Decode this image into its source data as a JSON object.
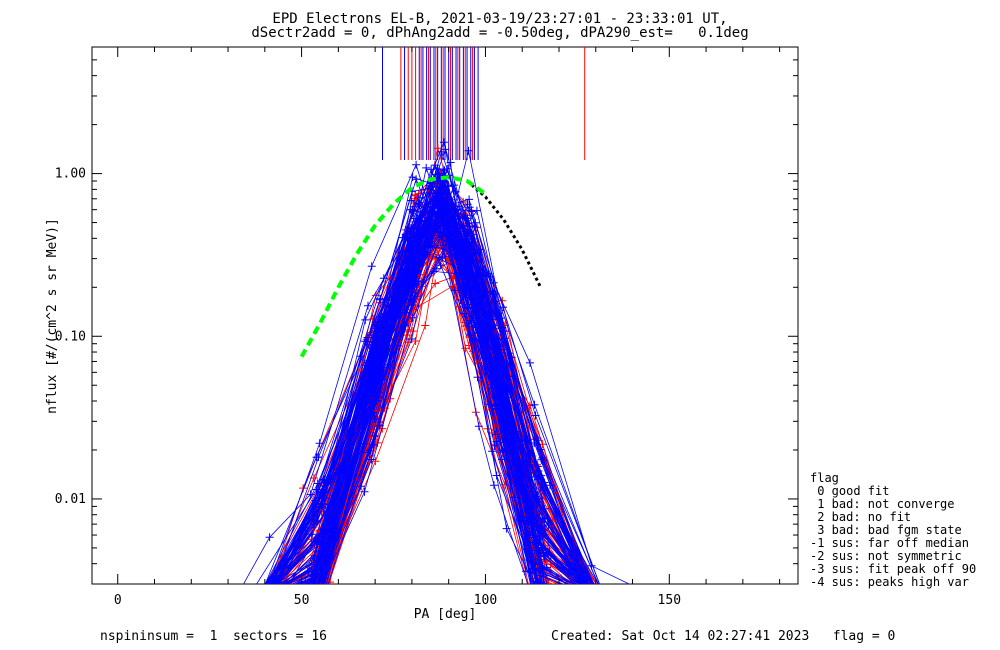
{
  "chart_data": {
    "type": "line",
    "title": "EPD Electrons EL-B, 2021-03-19/23:27:01 - 23:33:01 UT,",
    "subtitle": "dSectr2add = 0, dPhAng2add = -0.50deg, dPA290_est=   0.1deg",
    "xlabel": "PA [deg]",
    "ylabel": "nflux [#/(cm^2 s sr MeV)]",
    "xlim": [
      -7,
      185
    ],
    "ylim": [
      0.003,
      6.0
    ],
    "yscale": "log",
    "x_ticks": [
      0,
      50,
      100,
      150
    ],
    "x_tick_labels": [
      "0",
      "50",
      "100",
      "150"
    ],
    "y_ticks": [
      0.01,
      0.1,
      1.0
    ],
    "y_tick_labels": [
      "0.01",
      "0.10",
      "1.00"
    ],
    "grid": false,
    "series": [
      {
        "color": "#0000ff",
        "style": "line+plus",
        "count": 110,
        "x_range": [
          23,
          157
        ],
        "peak_x": 88,
        "peak_y": 0.85
      },
      {
        "color": "#ff0000",
        "style": "line+plus",
        "count": 70,
        "x_range": [
          23,
          157
        ],
        "peak_x": 88,
        "peak_y": 0.75
      },
      {
        "color": "#00ff00",
        "style": "dashed-fit",
        "x": [
          50,
          55,
          60,
          65,
          70,
          75,
          80,
          85,
          90,
          95,
          100
        ],
        "y": [
          0.075,
          0.12,
          0.2,
          0.32,
          0.48,
          0.65,
          0.82,
          0.92,
          0.95,
          0.9,
          0.75
        ]
      },
      {
        "color": "#000000",
        "style": "dotted-fit",
        "x": [
          95,
          100,
          105,
          110,
          115
        ],
        "y": [
          0.9,
          0.72,
          0.52,
          0.34,
          0.2
        ]
      }
    ],
    "vertical_lines_blue_x": [
      72,
      78,
      82,
      83,
      84,
      85,
      86,
      87,
      88,
      89,
      90,
      91,
      92,
      93,
      94,
      95,
      96,
      97,
      98
    ],
    "vertical_lines_red_x": [
      77,
      79,
      80,
      81,
      82.5,
      84.5,
      86.5,
      88.5,
      90.5,
      92.5,
      94.5,
      96.5,
      127
    ],
    "legend_position": "right"
  },
  "legend": {
    "title": "flag",
    "items": [
      " 0 good fit",
      " 1 bad: not converge",
      " 2 bad: no fit",
      " 3 bad: bad fgm state",
      "-1 sus: far off median",
      "-2 sus: not symmetric",
      "-3 sus: fit peak off 90",
      "-4 sus: peaks high var"
    ]
  },
  "footer": {
    "left": "nspininsum =  1  sectors = 16",
    "right": "Created: Sat Oct 14 02:27:41 2023   flag = 0"
  }
}
